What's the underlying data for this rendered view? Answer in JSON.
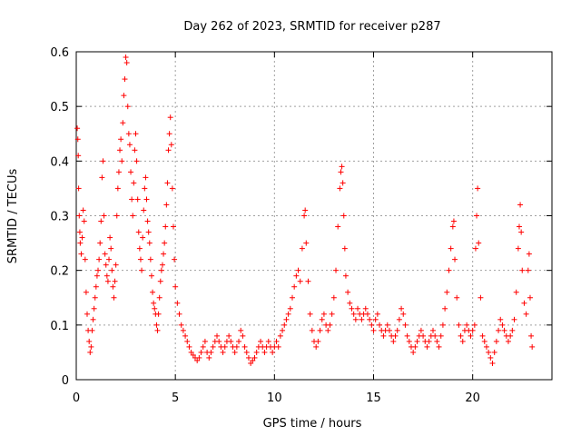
{
  "chart_data": {
    "type": "scatter",
    "title": "Day 262 of 2023, SRMTID for receiver p287",
    "xlabel": "GPS time / hours",
    "ylabel": "SRMTID / TECUs",
    "xlim": [
      0,
      24
    ],
    "ylim": [
      0,
      0.6
    ],
    "xticks": [
      0,
      5,
      10,
      15,
      20
    ],
    "yticks": [
      0,
      0.1,
      0.2,
      0.3,
      0.4,
      0.5,
      0.6
    ],
    "xtick_labels": [
      "0",
      "5",
      "10",
      "15",
      "20"
    ],
    "ytick_labels": [
      "0",
      "0.1",
      "0.2",
      "0.3",
      "0.4",
      "0.5",
      "0.6"
    ],
    "grid": true,
    "marker": "+",
    "color": "#ff0000",
    "series": [
      {
        "name": "SRMTID",
        "points": [
          [
            0.05,
            0.46
          ],
          [
            0.08,
            0.44
          ],
          [
            0.1,
            0.41
          ],
          [
            0.12,
            0.35
          ],
          [
            0.15,
            0.3
          ],
          [
            0.18,
            0.27
          ],
          [
            0.2,
            0.25
          ],
          [
            0.25,
            0.23
          ],
          [
            0.3,
            0.26
          ],
          [
            0.35,
            0.31
          ],
          [
            0.4,
            0.29
          ],
          [
            0.45,
            0.22
          ],
          [
            0.5,
            0.16
          ],
          [
            0.55,
            0.12
          ],
          [
            0.6,
            0.09
          ],
          [
            0.65,
            0.07
          ],
          [
            0.7,
            0.05
          ],
          [
            0.75,
            0.06
          ],
          [
            0.8,
            0.09
          ],
          [
            0.85,
            0.11
          ],
          [
            0.9,
            0.13
          ],
          [
            0.95,
            0.15
          ],
          [
            1.0,
            0.17
          ],
          [
            1.05,
            0.19
          ],
          [
            1.1,
            0.2
          ],
          [
            1.15,
            0.22
          ],
          [
            1.2,
            0.25
          ],
          [
            1.25,
            0.29
          ],
          [
            1.3,
            0.37
          ],
          [
            1.35,
            0.4
          ],
          [
            1.4,
            0.3
          ],
          [
            1.45,
            0.23
          ],
          [
            1.5,
            0.21
          ],
          [
            1.55,
            0.19
          ],
          [
            1.6,
            0.18
          ],
          [
            1.65,
            0.22
          ],
          [
            1.7,
            0.26
          ],
          [
            1.75,
            0.24
          ],
          [
            1.8,
            0.2
          ],
          [
            1.85,
            0.17
          ],
          [
            1.9,
            0.15
          ],
          [
            1.95,
            0.18
          ],
          [
            2.0,
            0.21
          ],
          [
            2.05,
            0.3
          ],
          [
            2.1,
            0.35
          ],
          [
            2.15,
            0.38
          ],
          [
            2.2,
            0.42
          ],
          [
            2.25,
            0.44
          ],
          [
            2.3,
            0.4
          ],
          [
            2.35,
            0.47
          ],
          [
            2.4,
            0.52
          ],
          [
            2.45,
            0.55
          ],
          [
            2.5,
            0.59
          ],
          [
            2.55,
            0.58
          ],
          [
            2.6,
            0.5
          ],
          [
            2.65,
            0.45
          ],
          [
            2.7,
            0.43
          ],
          [
            2.75,
            0.38
          ],
          [
            2.8,
            0.33
          ],
          [
            2.85,
            0.3
          ],
          [
            2.9,
            0.36
          ],
          [
            2.95,
            0.42
          ],
          [
            3.0,
            0.45
          ],
          [
            3.05,
            0.4
          ],
          [
            3.1,
            0.33
          ],
          [
            3.15,
            0.27
          ],
          [
            3.2,
            0.24
          ],
          [
            3.25,
            0.22
          ],
          [
            3.3,
            0.2
          ],
          [
            3.35,
            0.26
          ],
          [
            3.4,
            0.31
          ],
          [
            3.45,
            0.35
          ],
          [
            3.5,
            0.37
          ],
          [
            3.55,
            0.33
          ],
          [
            3.6,
            0.29
          ],
          [
            3.65,
            0.27
          ],
          [
            3.7,
            0.25
          ],
          [
            3.75,
            0.22
          ],
          [
            3.8,
            0.19
          ],
          [
            3.85,
            0.16
          ],
          [
            3.9,
            0.14
          ],
          [
            3.95,
            0.13
          ],
          [
            4.0,
            0.12
          ],
          [
            4.05,
            0.1
          ],
          [
            4.1,
            0.09
          ],
          [
            4.15,
            0.12
          ],
          [
            4.2,
            0.15
          ],
          [
            4.25,
            0.18
          ],
          [
            4.3,
            0.2
          ],
          [
            4.35,
            0.21
          ],
          [
            4.4,
            0.23
          ],
          [
            4.45,
            0.25
          ],
          [
            4.5,
            0.28
          ],
          [
            4.55,
            0.32
          ],
          [
            4.6,
            0.36
          ],
          [
            4.65,
            0.42
          ],
          [
            4.7,
            0.45
          ],
          [
            4.75,
            0.48
          ],
          [
            4.8,
            0.43
          ],
          [
            4.85,
            0.35
          ],
          [
            4.9,
            0.28
          ],
          [
            4.95,
            0.22
          ],
          [
            5.0,
            0.17
          ],
          [
            5.1,
            0.14
          ],
          [
            5.2,
            0.12
          ],
          [
            5.3,
            0.1
          ],
          [
            5.4,
            0.09
          ],
          [
            5.5,
            0.08
          ],
          [
            5.6,
            0.07
          ],
          [
            5.7,
            0.06
          ],
          [
            5.8,
            0.05
          ],
          [
            5.9,
            0.045
          ],
          [
            6.0,
            0.04
          ],
          [
            6.1,
            0.035
          ],
          [
            6.2,
            0.04
          ],
          [
            6.3,
            0.05
          ],
          [
            6.4,
            0.06
          ],
          [
            6.5,
            0.07
          ],
          [
            6.6,
            0.05
          ],
          [
            6.7,
            0.04
          ],
          [
            6.8,
            0.05
          ],
          [
            6.9,
            0.06
          ],
          [
            7.0,
            0.07
          ],
          [
            7.1,
            0.08
          ],
          [
            7.2,
            0.07
          ],
          [
            7.3,
            0.06
          ],
          [
            7.4,
            0.05
          ],
          [
            7.5,
            0.06
          ],
          [
            7.6,
            0.07
          ],
          [
            7.7,
            0.08
          ],
          [
            7.8,
            0.07
          ],
          [
            7.9,
            0.06
          ],
          [
            8.0,
            0.05
          ],
          [
            8.1,
            0.06
          ],
          [
            8.2,
            0.07
          ],
          [
            8.3,
            0.09
          ],
          [
            8.4,
            0.08
          ],
          [
            8.5,
            0.06
          ],
          [
            8.6,
            0.05
          ],
          [
            8.7,
            0.04
          ],
          [
            8.8,
            0.03
          ],
          [
            8.9,
            0.035
          ],
          [
            9.0,
            0.04
          ],
          [
            9.1,
            0.05
          ],
          [
            9.2,
            0.06
          ],
          [
            9.3,
            0.07
          ],
          [
            9.4,
            0.06
          ],
          [
            9.5,
            0.05
          ],
          [
            9.6,
            0.06
          ],
          [
            9.7,
            0.07
          ],
          [
            9.8,
            0.06
          ],
          [
            9.9,
            0.05
          ],
          [
            10.0,
            0.06
          ],
          [
            10.1,
            0.07
          ],
          [
            10.2,
            0.06
          ],
          [
            10.3,
            0.08
          ],
          [
            10.4,
            0.09
          ],
          [
            10.5,
            0.1
          ],
          [
            10.6,
            0.11
          ],
          [
            10.7,
            0.12
          ],
          [
            10.8,
            0.13
          ],
          [
            10.9,
            0.15
          ],
          [
            11.0,
            0.17
          ],
          [
            11.1,
            0.19
          ],
          [
            11.2,
            0.2
          ],
          [
            11.3,
            0.18
          ],
          [
            11.4,
            0.24
          ],
          [
            11.5,
            0.3
          ],
          [
            11.55,
            0.31
          ],
          [
            11.6,
            0.25
          ],
          [
            11.7,
            0.18
          ],
          [
            11.8,
            0.12
          ],
          [
            11.9,
            0.09
          ],
          [
            12.0,
            0.07
          ],
          [
            12.1,
            0.06
          ],
          [
            12.2,
            0.07
          ],
          [
            12.3,
            0.09
          ],
          [
            12.4,
            0.11
          ],
          [
            12.5,
            0.12
          ],
          [
            12.6,
            0.1
          ],
          [
            12.7,
            0.09
          ],
          [
            12.8,
            0.1
          ],
          [
            12.9,
            0.12
          ],
          [
            13.0,
            0.15
          ],
          [
            13.1,
            0.2
          ],
          [
            13.2,
            0.28
          ],
          [
            13.3,
            0.35
          ],
          [
            13.35,
            0.38
          ],
          [
            13.4,
            0.39
          ],
          [
            13.45,
            0.36
          ],
          [
            13.5,
            0.3
          ],
          [
            13.55,
            0.24
          ],
          [
            13.6,
            0.19
          ],
          [
            13.7,
            0.16
          ],
          [
            13.8,
            0.14
          ],
          [
            13.9,
            0.13
          ],
          [
            14.0,
            0.12
          ],
          [
            14.1,
            0.11
          ],
          [
            14.2,
            0.13
          ],
          [
            14.3,
            0.12
          ],
          [
            14.4,
            0.11
          ],
          [
            14.5,
            0.12
          ],
          [
            14.6,
            0.13
          ],
          [
            14.7,
            0.12
          ],
          [
            14.8,
            0.11
          ],
          [
            14.9,
            0.1
          ],
          [
            15.0,
            0.09
          ],
          [
            15.1,
            0.11
          ],
          [
            15.2,
            0.12
          ],
          [
            15.3,
            0.1
          ],
          [
            15.4,
            0.09
          ],
          [
            15.5,
            0.08
          ],
          [
            15.6,
            0.09
          ],
          [
            15.7,
            0.1
          ],
          [
            15.8,
            0.09
          ],
          [
            15.9,
            0.08
          ],
          [
            16.0,
            0.07
          ],
          [
            16.1,
            0.08
          ],
          [
            16.2,
            0.09
          ],
          [
            16.3,
            0.11
          ],
          [
            16.4,
            0.13
          ],
          [
            16.5,
            0.12
          ],
          [
            16.6,
            0.1
          ],
          [
            16.7,
            0.08
          ],
          [
            16.8,
            0.07
          ],
          [
            16.9,
            0.06
          ],
          [
            17.0,
            0.05
          ],
          [
            17.1,
            0.06
          ],
          [
            17.2,
            0.07
          ],
          [
            17.3,
            0.08
          ],
          [
            17.4,
            0.09
          ],
          [
            17.5,
            0.08
          ],
          [
            17.6,
            0.07
          ],
          [
            17.7,
            0.06
          ],
          [
            17.8,
            0.07
          ],
          [
            17.9,
            0.08
          ],
          [
            18.0,
            0.09
          ],
          [
            18.1,
            0.08
          ],
          [
            18.2,
            0.07
          ],
          [
            18.3,
            0.06
          ],
          [
            18.4,
            0.08
          ],
          [
            18.5,
            0.1
          ],
          [
            18.6,
            0.13
          ],
          [
            18.7,
            0.16
          ],
          [
            18.8,
            0.2
          ],
          [
            18.9,
            0.24
          ],
          [
            19.0,
            0.28
          ],
          [
            19.05,
            0.29
          ],
          [
            19.1,
            0.22
          ],
          [
            19.2,
            0.15
          ],
          [
            19.3,
            0.1
          ],
          [
            19.4,
            0.08
          ],
          [
            19.5,
            0.07
          ],
          [
            19.6,
            0.09
          ],
          [
            19.7,
            0.1
          ],
          [
            19.8,
            0.09
          ],
          [
            19.9,
            0.08
          ],
          [
            20.0,
            0.09
          ],
          [
            20.1,
            0.1
          ],
          [
            20.15,
            0.24
          ],
          [
            20.2,
            0.3
          ],
          [
            20.25,
            0.35
          ],
          [
            20.3,
            0.25
          ],
          [
            20.4,
            0.15
          ],
          [
            20.5,
            0.08
          ],
          [
            20.6,
            0.07
          ],
          [
            20.7,
            0.06
          ],
          [
            20.8,
            0.05
          ],
          [
            20.9,
            0.04
          ],
          [
            21.0,
            0.03
          ],
          [
            21.1,
            0.05
          ],
          [
            21.2,
            0.07
          ],
          [
            21.3,
            0.09
          ],
          [
            21.4,
            0.11
          ],
          [
            21.5,
            0.1
          ],
          [
            21.6,
            0.09
          ],
          [
            21.7,
            0.08
          ],
          [
            21.8,
            0.07
          ],
          [
            21.9,
            0.08
          ],
          [
            22.0,
            0.09
          ],
          [
            22.1,
            0.11
          ],
          [
            22.2,
            0.16
          ],
          [
            22.3,
            0.24
          ],
          [
            22.35,
            0.28
          ],
          [
            22.4,
            0.32
          ],
          [
            22.45,
            0.27
          ],
          [
            22.5,
            0.2
          ],
          [
            22.6,
            0.14
          ],
          [
            22.7,
            0.12
          ],
          [
            22.8,
            0.2
          ],
          [
            22.85,
            0.23
          ],
          [
            22.9,
            0.15
          ],
          [
            22.95,
            0.08
          ],
          [
            23.0,
            0.06
          ]
        ]
      }
    ]
  }
}
